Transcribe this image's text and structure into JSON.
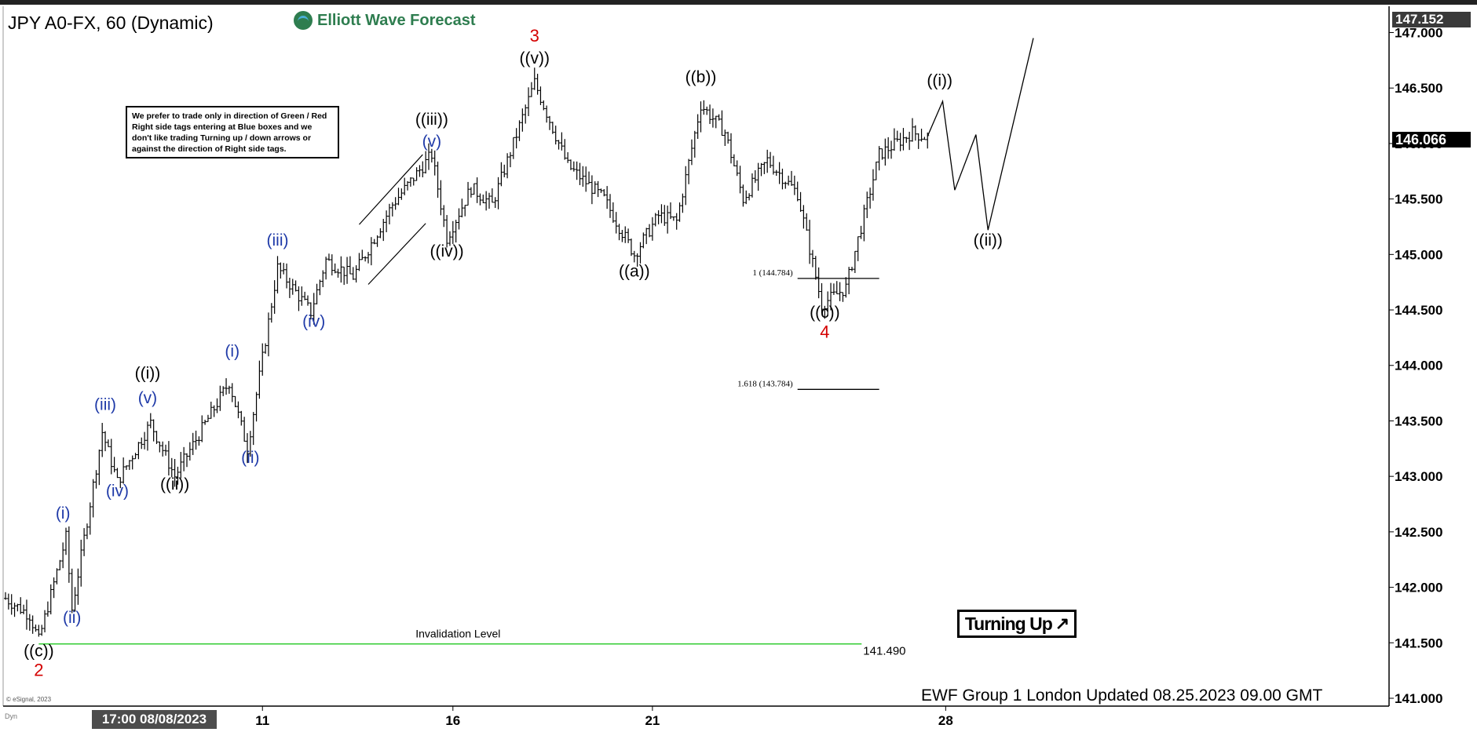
{
  "header": {
    "title": "JPY A0-FX, 60 (Dynamic)",
    "logo_text": "Elliott Wave Forecast"
  },
  "notice": "We prefer to trade only in direction of Green / Red Right side tags entering at Blue boxes and we don't like trading Turning up / down arrows or against the direction of Right side tags.",
  "turning_up_label": "Turning Up",
  "footer": {
    "update_text": "EWF Group 1 London Updated 08.25.2023 09.00 GMT",
    "copyright": "© eSignal, 2023",
    "date_badge": "17:00 08/08/2023",
    "dyn_label": "Dyn"
  },
  "price_tags": {
    "last": "147.152",
    "current": "146.066"
  },
  "colors": {
    "wave_black": "#000000",
    "wave_blue": "#1f3aa8",
    "wave_red": "#d40000",
    "invalidation": "#33cc33",
    "bars": "#000000"
  },
  "chart_data": {
    "type": "candlestick-ohlc",
    "ylim": [
      141.0,
      147.152
    ],
    "y_ticks": [
      "147.000",
      "146.500",
      "146.000",
      "145.500",
      "145.000",
      "144.500",
      "144.000",
      "143.500",
      "143.000",
      "142.500",
      "142.000",
      "141.500",
      "141.000"
    ],
    "x_tick_labels": [
      {
        "label": "11",
        "idx": 85
      },
      {
        "label": "16",
        "idx": 148
      },
      {
        "label": "21",
        "idx": 214
      },
      {
        "label": "28",
        "idx": 311
      }
    ],
    "price_path": [
      {
        "i": 0,
        "p": 141.9
      },
      {
        "i": 8,
        "p": 141.75
      },
      {
        "i": 11,
        "p": 141.52
      },
      {
        "i": 20,
        "p": 142.45
      },
      {
        "i": 22,
        "p": 141.8
      },
      {
        "i": 32,
        "p": 143.4
      },
      {
        "i": 37,
        "p": 142.95
      },
      {
        "i": 48,
        "p": 143.48
      },
      {
        "i": 56,
        "p": 143.0
      },
      {
        "i": 74,
        "p": 143.85
      },
      {
        "i": 80,
        "p": 143.25
      },
      {
        "i": 90,
        "p": 144.88
      },
      {
        "i": 101,
        "p": 144.48
      },
      {
        "i": 106,
        "p": 144.95
      },
      {
        "i": 115,
        "p": 144.8
      },
      {
        "i": 128,
        "p": 145.45
      },
      {
        "i": 141,
        "p": 145.9
      },
      {
        "i": 146,
        "p": 145.15
      },
      {
        "i": 154,
        "p": 145.6
      },
      {
        "i": 161,
        "p": 145.45
      },
      {
        "i": 175,
        "p": 146.55
      },
      {
        "i": 186,
        "p": 145.8
      },
      {
        "i": 198,
        "p": 145.5
      },
      {
        "i": 208,
        "p": 145.0
      },
      {
        "i": 216,
        "p": 145.35
      },
      {
        "i": 222,
        "p": 145.3
      },
      {
        "i": 230,
        "p": 146.35
      },
      {
        "i": 238,
        "p": 146.1
      },
      {
        "i": 244,
        "p": 145.5
      },
      {
        "i": 252,
        "p": 145.85
      },
      {
        "i": 262,
        "p": 145.55
      },
      {
        "i": 270,
        "p": 144.55
      },
      {
        "i": 278,
        "p": 144.7
      },
      {
        "i": 289,
        "p": 145.9
      },
      {
        "i": 300,
        "p": 146.1
      },
      {
        "i": 305,
        "p": 146.05
      }
    ],
    "projection": [
      {
        "i": 305,
        "p": 146.066
      },
      {
        "i": 310,
        "p": 146.38
      },
      {
        "i": 314,
        "p": 145.58
      },
      {
        "i": 321,
        "p": 146.08
      },
      {
        "i": 325,
        "p": 145.22
      },
      {
        "i": 340,
        "p": 146.95
      }
    ],
    "channel_lines": [
      {
        "i1": 117,
        "p1": 145.27,
        "i2": 138,
        "p2": 145.9
      },
      {
        "i1": 120,
        "p1": 144.73,
        "i2": 139,
        "p2": 145.28
      }
    ],
    "invalidation": {
      "label": "Invalidation Level",
      "value": 141.49,
      "value_label": "141.490",
      "i_start": 11,
      "i_end": 278
    },
    "fib_lines": [
      {
        "label": "1 (144.784)",
        "value": 144.784,
        "i_start": 262,
        "i_end": 289
      },
      {
        "label": "1.618 (143.784)",
        "value": 143.784,
        "i_start": 262,
        "i_end": 289
      }
    ],
    "wave_labels": [
      {
        "text": "((c))",
        "color": "black",
        "i": 11,
        "p": 141.38
      },
      {
        "text": "2",
        "color": "red",
        "i": 11,
        "p": 141.2
      },
      {
        "text": "(i)",
        "color": "blue",
        "i": 19,
        "p": 142.62
      },
      {
        "text": "(ii)",
        "color": "blue",
        "i": 22,
        "p": 141.68
      },
      {
        "text": "(iii)",
        "color": "blue",
        "i": 33,
        "p": 143.6
      },
      {
        "text": "(iv)",
        "color": "blue",
        "i": 37,
        "p": 142.82
      },
      {
        "text": "((i))",
        "color": "black",
        "i": 47,
        "p": 143.88
      },
      {
        "text": "(v)",
        "color": "blue",
        "i": 47,
        "p": 143.66
      },
      {
        "text": "((ii))",
        "color": "black",
        "i": 56,
        "p": 142.88
      },
      {
        "text": "(i)",
        "color": "blue",
        "i": 75,
        "p": 144.08
      },
      {
        "text": "(ii)",
        "color": "blue",
        "i": 81,
        "p": 143.12
      },
      {
        "text": "(iii)",
        "color": "blue",
        "i": 90,
        "p": 145.08
      },
      {
        "text": "(iv)",
        "color": "blue",
        "i": 102,
        "p": 144.35
      },
      {
        "text": "((iii))",
        "color": "black",
        "i": 141,
        "p": 146.17
      },
      {
        "text": "(v)",
        "color": "blue",
        "i": 141,
        "p": 145.97
      },
      {
        "text": "((iv))",
        "color": "black",
        "i": 146,
        "p": 144.98
      },
      {
        "text": "3",
        "color": "red",
        "i": 175,
        "p": 146.92
      },
      {
        "text": "((v))",
        "color": "black",
        "i": 175,
        "p": 146.72
      },
      {
        "text": "((a))",
        "color": "black",
        "i": 208,
        "p": 144.8
      },
      {
        "text": "((b))",
        "color": "black",
        "i": 230,
        "p": 146.55
      },
      {
        "text": "((c))",
        "color": "black",
        "i": 271,
        "p": 144.43
      },
      {
        "text": "4",
        "color": "red",
        "i": 271,
        "p": 144.25
      },
      {
        "text": "((i))",
        "color": "black",
        "i": 309,
        "p": 146.52
      },
      {
        "text": "((ii))",
        "color": "black",
        "i": 325,
        "p": 145.08
      }
    ]
  }
}
